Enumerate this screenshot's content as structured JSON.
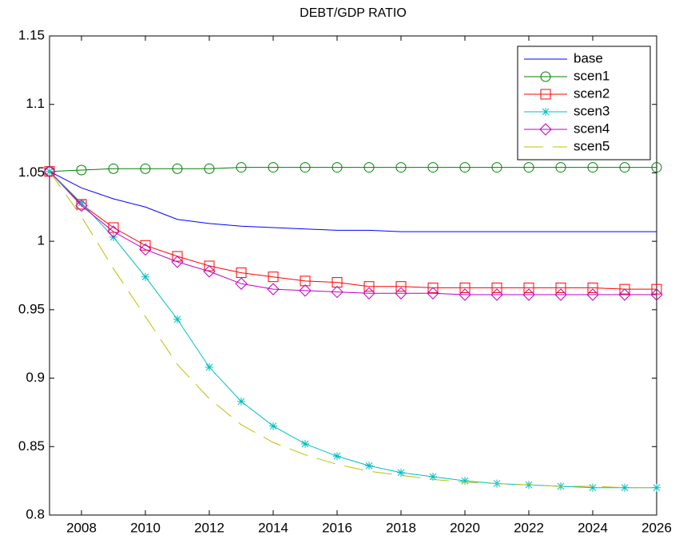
{
  "chart_data": {
    "type": "line",
    "title": "DEBT/GDP RATIO",
    "x": [
      2007,
      2008,
      2009,
      2010,
      2011,
      2012,
      2013,
      2014,
      2015,
      2016,
      2017,
      2018,
      2019,
      2020,
      2021,
      2022,
      2023,
      2024,
      2025,
      2026
    ],
    "xlim": [
      2007,
      2026
    ],
    "xticks": [
      2008,
      2010,
      2012,
      2014,
      2016,
      2018,
      2020,
      2022,
      2024,
      2026
    ],
    "ylim": [
      0.8,
      1.15
    ],
    "yticks": [
      0.8,
      0.85,
      0.9,
      0.95,
      1,
      1.05,
      1.1,
      1.15
    ],
    "grid": false,
    "legend": "upper right",
    "series": [
      {
        "name": "base",
        "color": "#0000ff",
        "marker": "none",
        "linestyle": "solid",
        "values": [
          1.051,
          1.039,
          1.031,
          1.025,
          1.016,
          1.013,
          1.011,
          1.01,
          1.009,
          1.008,
          1.008,
          1.007,
          1.007,
          1.007,
          1.007,
          1.007,
          1.007,
          1.007,
          1.007,
          1.007
        ]
      },
      {
        "name": "scen1",
        "color": "#008000",
        "marker": "circle",
        "linestyle": "solid",
        "values": [
          1.051,
          1.052,
          1.053,
          1.053,
          1.053,
          1.053,
          1.054,
          1.054,
          1.054,
          1.054,
          1.054,
          1.054,
          1.054,
          1.054,
          1.054,
          1.054,
          1.054,
          1.054,
          1.054,
          1.054
        ]
      },
      {
        "name": "scen2",
        "color": "#ff0000",
        "marker": "square",
        "linestyle": "solid",
        "values": [
          1.051,
          1.027,
          1.01,
          0.997,
          0.989,
          0.982,
          0.977,
          0.974,
          0.971,
          0.97,
          0.967,
          0.967,
          0.966,
          0.966,
          0.966,
          0.966,
          0.966,
          0.966,
          0.965,
          0.965
        ]
      },
      {
        "name": "scen3",
        "color": "#00bfbf",
        "marker": "star",
        "linestyle": "solid",
        "values": [
          1.051,
          1.028,
          1.003,
          0.974,
          0.943,
          0.908,
          0.883,
          0.865,
          0.852,
          0.843,
          0.836,
          0.831,
          0.828,
          0.825,
          0.823,
          0.822,
          0.821,
          0.82,
          0.82,
          0.82
        ]
      },
      {
        "name": "scen4",
        "color": "#bf00bf",
        "marker": "diamond",
        "linestyle": "solid",
        "values": [
          1.051,
          1.026,
          1.007,
          0.994,
          0.985,
          0.978,
          0.969,
          0.965,
          0.964,
          0.963,
          0.962,
          0.962,
          0.962,
          0.961,
          0.961,
          0.961,
          0.961,
          0.961,
          0.961,
          0.961
        ]
      },
      {
        "name": "scen5",
        "color": "#bfbf00",
        "marker": "none",
        "linestyle": "dashed",
        "values": [
          1.051,
          1.018,
          0.98,
          0.945,
          0.91,
          0.885,
          0.866,
          0.853,
          0.844,
          0.837,
          0.832,
          0.829,
          0.826,
          0.824,
          0.823,
          0.822,
          0.821,
          0.821,
          0.82,
          0.82
        ]
      }
    ]
  }
}
